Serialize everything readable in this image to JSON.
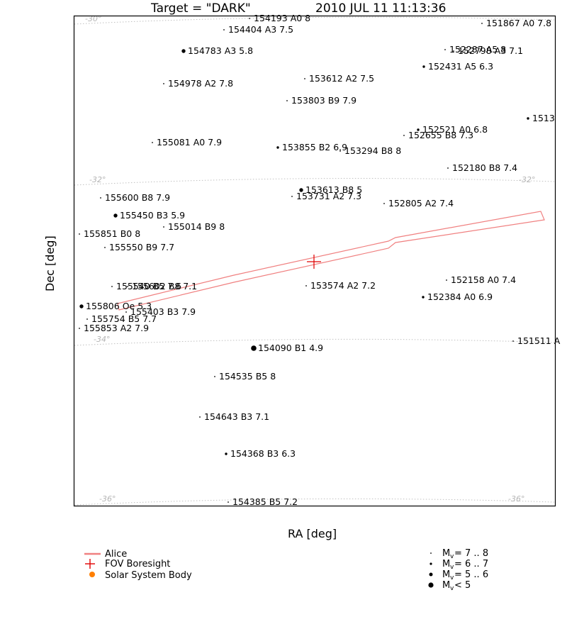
{
  "title": {
    "target": "Target = \"DARK\"",
    "timestamp": "2010 JUL 11 11:13:36"
  },
  "axes": {
    "xlabel": "RA [deg]",
    "ylabel": "Dec [deg]"
  },
  "colors": {
    "fov": "#f08080",
    "boresight": "#e00000",
    "solar_body": "#ff7f00",
    "grid": "#c0c0c0"
  },
  "legend": {
    "lines": [
      {
        "label": "Alice",
        "symbol": "line"
      },
      {
        "label": "FOV Boresight",
        "symbol": "cross"
      },
      {
        "label": "Solar System Body",
        "symbol": "dot"
      }
    ],
    "magnitudes": [
      {
        "prefix": "M",
        "sub": "v",
        "text": " = 7 .. 8",
        "size": 1
      },
      {
        "prefix": "M",
        "sub": "v",
        "text": " = 6 .. 7",
        "size": 2
      },
      {
        "prefix": "M",
        "sub": "v",
        "text": " = 5 .. 6",
        "size": 3
      },
      {
        "prefix": "M",
        "sub": "v",
        "text": " < 5",
        "size": 4
      }
    ]
  },
  "chart_data": {
    "type": "scatter",
    "title": "Target = \"DARK\"  2010 JUL 11 11:13:36",
    "xlabel": "RA [deg]",
    "ylabel": "Dec [deg]",
    "dec_grid_labels": [
      {
        "text": "-30°",
        "dec": -30
      },
      {
        "text": "-32°",
        "dec": -32
      },
      {
        "text": "-34°",
        "dec": -34
      },
      {
        "text": "-36°",
        "dec": -36
      }
    ],
    "stars": [
      {
        "label": "154193 A0 8",
        "mag": 8.0
      },
      {
        "label": "154404 A3 7.5",
        "mag": 7.5
      },
      {
        "label": "151867 A0 7.8",
        "mag": 7.8
      },
      {
        "label": "154783 A3 5.8",
        "mag": 5.8
      },
      {
        "label": "152287 A5 8",
        "mag": 8.0
      },
      {
        "label": "152798 A3 7.1",
        "mag": 7.1
      },
      {
        "label": "152431 A5 6.3",
        "mag": 6.3
      },
      {
        "label": "153612 A2 7.5",
        "mag": 7.5
      },
      {
        "label": "154978 A2 7.8",
        "mag": 7.8
      },
      {
        "label": "153803 B9 7.9",
        "mag": 7.9
      },
      {
        "label": "1513",
        "mag": 6.5
      },
      {
        "label": "152521 A0 6.8",
        "mag": 6.8
      },
      {
        "label": "152655 B8 7.3",
        "mag": 7.3
      },
      {
        "label": "155081 A0 7.9",
        "mag": 7.9
      },
      {
        "label": "153855 B2 6.9",
        "mag": 6.9
      },
      {
        "label": "153294 B8 8",
        "mag": 8.0
      },
      {
        "label": "152180 B8 7.4",
        "mag": 7.4
      },
      {
        "label": "153613 B8 5",
        "mag": 5.0
      },
      {
        "label": "155600 B8 7.9",
        "mag": 7.9
      },
      {
        "label": "153731 A2 7.3",
        "mag": 7.3
      },
      {
        "label": "152805 A2 7.4",
        "mag": 7.4
      },
      {
        "label": "155450 B3 5.9",
        "mag": 5.9
      },
      {
        "label": "155014 B9 8",
        "mag": 8.0
      },
      {
        "label": "155851 B0 8",
        "mag": 8.0
      },
      {
        "label": "155550 B9 7.7",
        "mag": 7.7
      },
      {
        "label": "152158 A0 7.4",
        "mag": 7.4
      },
      {
        "label": "155540 B5 7.6",
        "mag": 7.6
      },
      {
        "label": "155602 B8 7.1",
        "mag": 7.1
      },
      {
        "label": "153574 A2 7.2",
        "mag": 7.2
      },
      {
        "label": "152384 A0 6.9",
        "mag": 6.9
      },
      {
        "label": "155806 Oe 5.3",
        "mag": 5.3
      },
      {
        "label": "155403 B3 7.9",
        "mag": 7.9
      },
      {
        "label": "155754 B5 7.7",
        "mag": 7.7
      },
      {
        "label": "155853 A2 7.9",
        "mag": 7.9
      },
      {
        "label": "154090 B1 4.9",
        "mag": 4.9
      },
      {
        "label": "151511 A",
        "mag": 7.5
      },
      {
        "label": "154535 B5 8",
        "mag": 8.0
      },
      {
        "label": "154643 B3 7.1",
        "mag": 7.1
      },
      {
        "label": "154368 B3 6.3",
        "mag": 6.3
      },
      {
        "label": "154385 B5 7.2",
        "mag": 7.2
      }
    ]
  }
}
